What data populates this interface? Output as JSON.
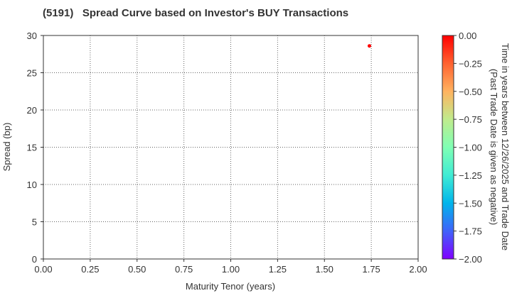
{
  "title": "(5191)   Spread Curve based on Investor's BUY Transactions",
  "chart_data": {
    "type": "scatter",
    "title": "(5191)   Spread Curve based on Investor's BUY Transactions",
    "xlabel": "Maturity Tenor (years)",
    "ylabel": "Spread (bp)",
    "xlim": [
      0,
      2
    ],
    "ylim": [
      0,
      30
    ],
    "xticks": [
      "0.00",
      "0.25",
      "0.50",
      "0.75",
      "1.00",
      "1.25",
      "1.50",
      "1.75",
      "2.00"
    ],
    "yticks": [
      "0",
      "5",
      "10",
      "15",
      "20",
      "25",
      "30"
    ],
    "grid": true,
    "points": [
      {
        "x": 1.74,
        "y": 28.6,
        "c": 0.0,
        "color": "#ff0000"
      }
    ],
    "colorbar": {
      "label_line1": "Time in years between 12/26/2025 and Trade Date",
      "label_line2": "(Past Trade Date is given as negative)",
      "range": [
        -2,
        0
      ],
      "ticks": [
        "0.00",
        "-0.25",
        "-0.50",
        "-0.75",
        "-1.00",
        "-1.25",
        "-1.50",
        "-1.75",
        "-2.00"
      ],
      "colormap": "rainbow"
    }
  }
}
